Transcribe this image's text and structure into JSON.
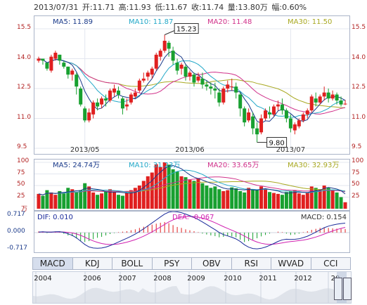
{
  "header": {
    "date": "2013/07/31",
    "open": "开:11.71",
    "high": "高:11.93",
    "low": "低:11.67",
    "close": "收:11.74",
    "volume": "量:13.80万",
    "change": "幅:0.60%"
  },
  "price_panel": {
    "legend": [
      {
        "label": "MA5: 11.89",
        "color": "#1a3a8a"
      },
      {
        "label": "MA10: 11.87",
        "color": "#22a8c8"
      },
      {
        "label": "MA20: 11.48",
        "color": "#d0308a"
      },
      {
        "label": "MA30: 11.50",
        "color": "#a8a820"
      }
    ],
    "y_ticks": [
      "15.5",
      "14.0",
      "12.5",
      "11.0",
      "9.5"
    ],
    "x_ticks": [
      "2013/05",
      "2013/06",
      "2013/07"
    ],
    "max_label": "15.23",
    "min_label": "9.80"
  },
  "volume_panel": {
    "legend": [
      {
        "label": "MA5: 24.74万",
        "color": "#1a3a8a"
      },
      {
        "label": "MA10: 31.23万",
        "color": "#22a8c8"
      },
      {
        "label": "MA20: 33.65万",
        "color": "#d0308a"
      },
      {
        "label": "MA30: 32.93万",
        "color": "#a8a820"
      }
    ],
    "y_ticks": [
      "100",
      "75",
      "50",
      "25"
    ],
    "unit": "万"
  },
  "macd_panel": {
    "dif": "DIF: 0.010",
    "dea": "DEA: -0.067",
    "macd": "MACD: 0.154",
    "y_ticks": [
      "0.717",
      "0.000",
      "-0.717"
    ]
  },
  "tabs": [
    "MACD",
    "KDJ",
    "BOLL",
    "PSY",
    "OBV",
    "RSI",
    "WVAD",
    "CCI"
  ],
  "timeline_years": [
    "2004",
    "2006",
    "2007",
    "2008",
    "2009",
    "2010",
    "2011",
    "2012",
    "20"
  ],
  "colors": {
    "up": "#e02020",
    "down": "#18a030",
    "ma5": "#1a3a8a",
    "ma10": "#22a8c8",
    "ma20": "#d0308a",
    "ma30": "#a8a820",
    "dif": "#1a2a9a",
    "dea": "#d020b0"
  },
  "chart_data": [
    {
      "type": "candlestick",
      "title": "",
      "ylim": [
        9.5,
        15.5
      ],
      "x_labels": [
        "2013/05",
        "2013/06",
        "2013/07"
      ],
      "candles": [
        [
          13.9,
          14.1,
          14.0,
          13.8
        ],
        [
          14.0,
          14.0,
          13.9,
          13.7
        ],
        [
          13.8,
          13.8,
          13.5,
          13.4
        ],
        [
          13.4,
          14.2,
          14.1,
          13.3
        ],
        [
          14.0,
          14.4,
          14.3,
          13.9
        ],
        [
          14.2,
          14.2,
          13.9,
          13.7
        ],
        [
          13.8,
          13.9,
          13.6,
          13.5
        ],
        [
          13.6,
          13.6,
          13.2,
          13.0
        ],
        [
          13.2,
          13.5,
          13.4,
          12.9
        ],
        [
          13.2,
          13.3,
          12.6,
          12.2
        ],
        [
          12.5,
          12.6,
          11.7,
          11.6
        ],
        [
          11.5,
          11.6,
          10.9,
          10.8
        ],
        [
          10.9,
          11.5,
          11.3,
          10.8
        ],
        [
          11.2,
          11.9,
          11.8,
          11.0
        ],
        [
          11.8,
          12.0,
          11.6,
          11.4
        ],
        [
          11.7,
          12.1,
          12.0,
          11.5
        ],
        [
          12.0,
          12.2,
          11.9,
          11.6
        ],
        [
          11.9,
          12.5,
          12.4,
          11.8
        ],
        [
          12.3,
          12.7,
          12.5,
          12.1
        ],
        [
          12.4,
          12.6,
          12.2,
          12.0
        ],
        [
          12.0,
          12.1,
          11.5,
          11.2
        ],
        [
          11.6,
          12.0,
          11.7,
          11.4
        ],
        [
          11.8,
          12.3,
          12.2,
          11.7
        ],
        [
          12.1,
          12.5,
          12.3,
          12.0
        ],
        [
          12.4,
          13.0,
          12.9,
          12.3
        ],
        [
          12.9,
          13.3,
          13.0,
          12.8
        ],
        [
          13.1,
          13.4,
          13.3,
          12.9
        ],
        [
          13.2,
          13.6,
          13.5,
          13.0
        ],
        [
          13.5,
          14.3,
          14.2,
          13.4
        ],
        [
          14.1,
          14.5,
          14.4,
          13.9
        ],
        [
          14.4,
          15.2,
          14.9,
          14.3
        ],
        [
          14.8,
          14.9,
          14.5,
          14.1
        ],
        [
          14.4,
          14.6,
          13.9,
          13.7
        ],
        [
          13.8,
          14.0,
          13.4,
          13.2
        ],
        [
          13.5,
          13.8,
          13.7,
          13.2
        ],
        [
          13.6,
          13.7,
          13.1,
          12.9
        ],
        [
          13.1,
          13.4,
          13.3,
          12.9
        ],
        [
          13.2,
          13.3,
          12.8,
          12.6
        ],
        [
          12.9,
          13.3,
          13.1,
          12.8
        ],
        [
          13.0,
          13.3,
          12.7,
          12.5
        ],
        [
          12.7,
          12.9,
          12.6,
          12.4
        ],
        [
          12.6,
          12.8,
          12.5,
          12.2
        ],
        [
          12.5,
          12.8,
          12.4,
          12.0
        ],
        [
          12.3,
          12.5,
          11.8,
          11.6
        ],
        [
          11.8,
          12.6,
          12.5,
          11.7
        ],
        [
          12.5,
          12.9,
          12.7,
          12.3
        ],
        [
          12.6,
          13.0,
          12.6,
          12.4
        ],
        [
          12.6,
          12.8,
          12.3,
          12.0
        ],
        [
          12.2,
          12.3,
          11.5,
          11.1
        ],
        [
          11.5,
          11.6,
          10.8,
          10.6
        ],
        [
          10.9,
          11.5,
          11.3,
          10.8
        ],
        [
          11.1,
          11.3,
          10.5,
          10.2
        ],
        [
          10.5,
          10.8,
          10.2,
          9.8
        ],
        [
          10.3,
          11.2,
          11.0,
          10.2
        ],
        [
          11.0,
          11.5,
          11.4,
          10.9
        ],
        [
          11.3,
          11.6,
          11.2,
          11.0
        ],
        [
          11.2,
          11.7,
          11.6,
          11.1
        ],
        [
          11.6,
          11.9,
          11.7,
          11.4
        ],
        [
          11.7,
          12.0,
          11.4,
          11.2
        ],
        [
          11.4,
          11.5,
          11.0,
          10.8
        ],
        [
          11.0,
          11.2,
          10.5,
          10.3
        ],
        [
          10.4,
          10.8,
          10.7,
          10.2
        ],
        [
          10.6,
          11.0,
          10.9,
          10.5
        ],
        [
          10.9,
          11.3,
          11.2,
          10.8
        ],
        [
          11.2,
          11.5,
          11.4,
          11.0
        ],
        [
          11.4,
          12.2,
          12.1,
          11.3
        ],
        [
          12.0,
          12.3,
          11.8,
          11.6
        ],
        [
          11.8,
          12.2,
          12.1,
          11.7
        ],
        [
          12.1,
          12.6,
          12.3,
          11.9
        ],
        [
          12.3,
          12.5,
          12.0,
          11.8
        ],
        [
          12.0,
          12.4,
          12.2,
          11.9
        ],
        [
          12.2,
          12.3,
          11.9,
          11.7
        ],
        [
          11.9,
          12.1,
          11.7,
          11.6
        ],
        [
          11.71,
          11.93,
          11.74,
          11.67
        ]
      ],
      "series": [
        {
          "name": "MA5",
          "value": 11.89
        },
        {
          "name": "MA10",
          "value": 11.87
        },
        {
          "name": "MA20",
          "value": 11.48
        },
        {
          "name": "MA30",
          "value": 11.5
        }
      ]
    },
    {
      "type": "bar",
      "title": "",
      "ylabel": "万",
      "ylim": [
        0,
        100
      ],
      "values": [
        32,
        28,
        40,
        35,
        30,
        38,
        33,
        45,
        42,
        36,
        40,
        55,
        48,
        35,
        30,
        33,
        38,
        42,
        36,
        30,
        28,
        34,
        40,
        45,
        50,
        60,
        70,
        78,
        96,
        90,
        100,
        95,
        85,
        80,
        70,
        68,
        62,
        60,
        65,
        55,
        50,
        45,
        48,
        42,
        38,
        40,
        46,
        44,
        38,
        35,
        45,
        42,
        40,
        48,
        42,
        36,
        34,
        32,
        30,
        36,
        38,
        40,
        33,
        30,
        34,
        48,
        45,
        42,
        50,
        45,
        40,
        35,
        25,
        14
      ],
      "up": [
        1,
        0,
        0,
        1,
        1,
        0,
        0,
        0,
        1,
        0,
        0,
        0,
        1,
        1,
        0,
        1,
        0,
        1,
        1,
        0,
        0,
        1,
        1,
        1,
        1,
        1,
        1,
        1,
        1,
        1,
        1,
        0,
        0,
        0,
        1,
        0,
        1,
        0,
        1,
        0,
        0,
        0,
        0,
        0,
        1,
        1,
        0,
        0,
        0,
        0,
        1,
        0,
        0,
        1,
        1,
        0,
        1,
        1,
        0,
        0,
        0,
        1,
        1,
        1,
        1,
        1,
        0,
        1,
        1,
        0,
        1,
        0,
        0,
        1
      ]
    },
    {
      "type": "bar",
      "title": "",
      "ylim": [
        -0.717,
        0.717
      ],
      "values": [
        0.05,
        0.03,
        -0.02,
        0.01,
        0.04,
        0.02,
        -0.05,
        -0.12,
        -0.15,
        -0.25,
        -0.35,
        -0.4,
        -0.36,
        -0.28,
        -0.22,
        -0.18,
        -0.12,
        -0.06,
        -0.02,
        0.02,
        0.04,
        0.06,
        0.1,
        0.14,
        0.2,
        0.25,
        0.3,
        0.34,
        0.38,
        0.42,
        0.45,
        0.4,
        0.32,
        0.24,
        0.2,
        0.14,
        0.1,
        0.06,
        0.02,
        -0.04,
        -0.08,
        -0.12,
        -0.15,
        -0.2,
        -0.18,
        -0.14,
        -0.16,
        -0.2,
        -0.3,
        -0.4,
        -0.36,
        -0.3,
        -0.24,
        -0.16,
        -0.1,
        -0.04,
        0.0,
        0.04,
        0.02,
        -0.04,
        -0.1,
        -0.08,
        -0.04,
        0.02,
        0.06,
        0.12,
        0.16,
        0.2,
        0.22,
        0.2,
        0.18,
        0.17,
        0.16,
        0.154
      ]
    }
  ]
}
